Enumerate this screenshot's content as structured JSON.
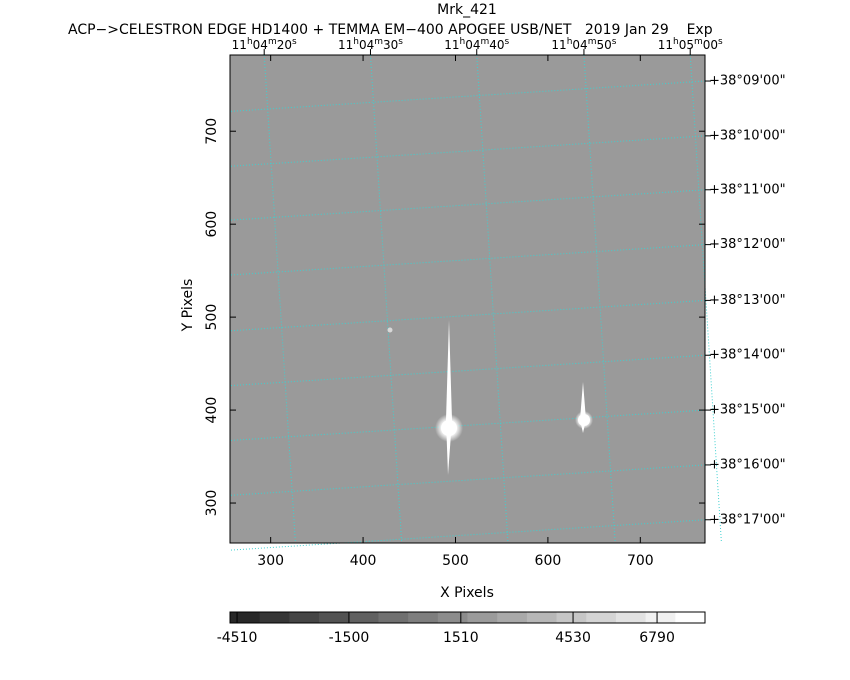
{
  "chart_data": {
    "type": "image",
    "title": "Mrk_421",
    "subtitle": "ACP−>CELESTRON EDGE HD1400 + TEMMA EM−400 APOGEE USB/NET   2019 Jan 29    Exp",
    "x_label": "X Pixels",
    "y_label": "Y Pixels",
    "xlim": [
      256,
      770
    ],
    "ylim": [
      257,
      782
    ],
    "xticks": [
      300,
      400,
      500,
      600,
      700
    ],
    "yticks": [
      300,
      400,
      500,
      600,
      700
    ],
    "x2ticks": [
      {
        "value": 293,
        "label": "11h04m20s"
      },
      {
        "value": 408,
        "label": "11h04m30s"
      },
      {
        "value": 523,
        "label": "11h04m40s"
      },
      {
        "value": 639,
        "label": "11h04m50s"
      },
      {
        "value": 754,
        "label": "11h05m00s"
      }
    ],
    "y2ticks": [
      {
        "value": 754,
        "label": "+38°09'00\""
      },
      {
        "value": 695,
        "label": "+38°10'00\""
      },
      {
        "value": 637,
        "label": "+38°11'00\""
      },
      {
        "value": 578,
        "label": "+38°12'00\""
      },
      {
        "value": 518,
        "label": "+38°13'00\""
      },
      {
        "value": 459,
        "label": "+38°14'00\""
      },
      {
        "value": 400,
        "label": "+38°15'00\""
      },
      {
        "value": 341,
        "label": "+38°16'00\""
      },
      {
        "value": 282,
        "label": "+38°17'00\""
      }
    ],
    "grid": true,
    "grid_color": "#3fd0d0",
    "colorbar": {
      "lim": [
        -4700,
        8080
      ],
      "ticks": [
        -4510,
        -1500,
        1510,
        4530,
        6790
      ]
    }
  }
}
